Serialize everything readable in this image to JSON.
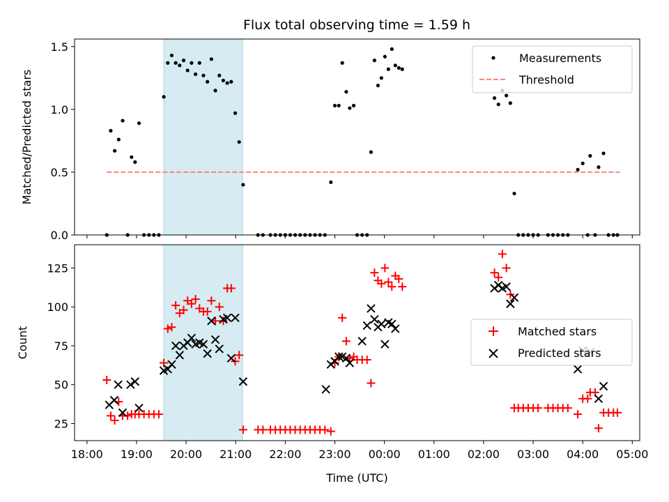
{
  "chart_data": [
    {
      "type": "scatter",
      "title": "Flux total observing time = 1.59 h",
      "xlabel": "",
      "ylabel": "Matched/Predicted stars",
      "xlim": [
        -0.25,
        11.15
      ],
      "ylim": [
        0,
        1.56
      ],
      "yticks": [
        0.0,
        0.5,
        1.0,
        1.5
      ],
      "ytick_labels": [
        "0.0",
        "0.5",
        "1.0",
        "1.5"
      ],
      "highlight_span": [
        1.55,
        3.14
      ],
      "legend": {
        "position": "top-right",
        "entries": [
          "Measurements",
          "Threshold"
        ]
      },
      "threshold": {
        "name": "Threshold",
        "value": 0.5,
        "x": [
          0.4,
          10.75
        ],
        "color": "#ff8080"
      },
      "series": [
        {
          "name": "Measurements",
          "color": "#000000",
          "marker": "dot",
          "points": [
            [
              0.4,
              0.0
            ],
            [
              0.48,
              0.83
            ],
            [
              0.56,
              0.67
            ],
            [
              0.64,
              0.76
            ],
            [
              0.72,
              0.91
            ],
            [
              0.82,
              0.0
            ],
            [
              0.9,
              0.62
            ],
            [
              0.97,
              0.58
            ],
            [
              1.05,
              0.89
            ],
            [
              1.15,
              0.0
            ],
            [
              1.25,
              0.0
            ],
            [
              1.35,
              0.0
            ],
            [
              1.45,
              0.0
            ],
            [
              1.55,
              1.1
            ],
            [
              1.63,
              1.37
            ],
            [
              1.71,
              1.43
            ],
            [
              1.79,
              1.37
            ],
            [
              1.87,
              1.35
            ],
            [
              1.95,
              1.39
            ],
            [
              2.03,
              1.31
            ],
            [
              2.11,
              1.37
            ],
            [
              2.19,
              1.28
            ],
            [
              2.27,
              1.37
            ],
            [
              2.35,
              1.27
            ],
            [
              2.43,
              1.22
            ],
            [
              2.51,
              1.4
            ],
            [
              2.59,
              1.15
            ],
            [
              2.67,
              1.27
            ],
            [
              2.75,
              1.23
            ],
            [
              2.83,
              1.21
            ],
            [
              2.91,
              1.22
            ],
            [
              2.99,
              0.97
            ],
            [
              3.07,
              0.74
            ],
            [
              3.15,
              0.4
            ],
            [
              3.45,
              0.0
            ],
            [
              3.55,
              0.0
            ],
            [
              3.7,
              0.0
            ],
            [
              3.8,
              0.0
            ],
            [
              3.9,
              0.0
            ],
            [
              4.0,
              0.0
            ],
            [
              4.1,
              0.0
            ],
            [
              4.2,
              0.0
            ],
            [
              4.3,
              0.0
            ],
            [
              4.4,
              0.0
            ],
            [
              4.5,
              0.0
            ],
            [
              4.6,
              0.0
            ],
            [
              4.7,
              0.0
            ],
            [
              4.8,
              0.0
            ],
            [
              4.92,
              0.42
            ],
            [
              5.0,
              1.03
            ],
            [
              5.08,
              1.03
            ],
            [
              5.15,
              1.37
            ],
            [
              5.23,
              1.14
            ],
            [
              5.3,
              1.01
            ],
            [
              5.38,
              1.03
            ],
            [
              5.45,
              0.0
            ],
            [
              5.55,
              0.0
            ],
            [
              5.65,
              0.0
            ],
            [
              5.73,
              0.66
            ],
            [
              5.8,
              1.39
            ],
            [
              5.87,
              1.19
            ],
            [
              5.94,
              1.25
            ],
            [
              6.01,
              1.42
            ],
            [
              6.08,
              1.32
            ],
            [
              6.15,
              1.48
            ],
            [
              6.22,
              1.35
            ],
            [
              6.29,
              1.33
            ],
            [
              6.36,
              1.32
            ],
            [
              8.22,
              1.09
            ],
            [
              8.3,
              1.04
            ],
            [
              8.38,
              1.15
            ],
            [
              8.46,
              1.11
            ],
            [
              8.54,
              1.05
            ],
            [
              8.62,
              0.33
            ],
            [
              8.7,
              0.0
            ],
            [
              8.8,
              0.0
            ],
            [
              8.9,
              0.0
            ],
            [
              9.0,
              0.0
            ],
            [
              9.1,
              0.0
            ],
            [
              9.3,
              0.0
            ],
            [
              9.4,
              0.0
            ],
            [
              9.5,
              0.0
            ],
            [
              9.6,
              0.0
            ],
            [
              9.7,
              0.0
            ],
            [
              9.9,
              0.52
            ],
            [
              10.0,
              0.57
            ],
            [
              10.1,
              0.0
            ],
            [
              10.15,
              0.63
            ],
            [
              10.25,
              0.0
            ],
            [
              10.32,
              0.54
            ],
            [
              10.42,
              0.65
            ],
            [
              10.52,
              0.0
            ],
            [
              10.62,
              0.0
            ],
            [
              10.7,
              0.0
            ]
          ]
        }
      ]
    },
    {
      "type": "scatter",
      "title": "",
      "xlabel": "Time (UTC)",
      "ylabel": "Count",
      "xlim": [
        -0.25,
        11.15
      ],
      "ylim": [
        14,
        140
      ],
      "yticks": [
        25,
        50,
        75,
        100,
        125
      ],
      "ytick_labels": [
        "25",
        "50",
        "75",
        "100",
        "125"
      ],
      "xticks": [
        0,
        1,
        2,
        3,
        4,
        5,
        6,
        7,
        8,
        9,
        10,
        11
      ],
      "xtick_labels": [
        "18:00",
        "19:00",
        "20:00",
        "21:00",
        "22:00",
        "23:00",
        "00:00",
        "01:00",
        "02:00",
        "03:00",
        "04:00",
        "05:00"
      ],
      "highlight_span": [
        1.55,
        3.14
      ],
      "legend": {
        "position": "center-right",
        "entries": [
          "Matched stars",
          "Predicted stars"
        ]
      },
      "series": [
        {
          "name": "Matched stars",
          "color": "#ff0000",
          "marker": "plus",
          "points": [
            [
              0.4,
              53
            ],
            [
              0.48,
              30
            ],
            [
              0.56,
              27
            ],
            [
              0.64,
              39
            ],
            [
              0.72,
              30
            ],
            [
              0.82,
              30
            ],
            [
              0.9,
              31
            ],
            [
              0.97,
              31
            ],
            [
              1.05,
              31
            ],
            [
              1.15,
              31
            ],
            [
              1.25,
              31
            ],
            [
              1.35,
              31
            ],
            [
              1.45,
              31
            ],
            [
              1.55,
              64
            ],
            [
              1.63,
              86
            ],
            [
              1.71,
              87
            ],
            [
              1.79,
              101
            ],
            [
              1.87,
              96
            ],
            [
              1.95,
              98
            ],
            [
              2.03,
              104
            ],
            [
              2.11,
              102
            ],
            [
              2.19,
              105
            ],
            [
              2.27,
              99
            ],
            [
              2.35,
              97
            ],
            [
              2.43,
              97
            ],
            [
              2.51,
              104
            ],
            [
              2.59,
              91
            ],
            [
              2.67,
              100
            ],
            [
              2.75,
              91
            ],
            [
              2.83,
              112
            ],
            [
              2.91,
              112
            ],
            [
              2.99,
              65
            ],
            [
              3.07,
              69
            ],
            [
              3.15,
              21
            ],
            [
              3.45,
              21
            ],
            [
              3.55,
              21
            ],
            [
              3.7,
              21
            ],
            [
              3.8,
              21
            ],
            [
              3.9,
              21
            ],
            [
              4.0,
              21
            ],
            [
              4.1,
              21
            ],
            [
              4.2,
              21
            ],
            [
              4.3,
              21
            ],
            [
              4.4,
              21
            ],
            [
              4.5,
              21
            ],
            [
              4.6,
              21
            ],
            [
              4.7,
              21
            ],
            [
              4.8,
              21
            ],
            [
              4.92,
              20
            ],
            [
              5.0,
              64
            ],
            [
              5.08,
              68
            ],
            [
              5.15,
              93
            ],
            [
              5.23,
              78
            ],
            [
              5.3,
              67
            ],
            [
              5.38,
              68
            ],
            [
              5.45,
              66
            ],
            [
              5.55,
              66
            ],
            [
              5.65,
              66
            ],
            [
              5.73,
              51
            ],
            [
              5.8,
              122
            ],
            [
              5.87,
              117
            ],
            [
              5.94,
              115
            ],
            [
              6.01,
              125
            ],
            [
              6.08,
              116
            ],
            [
              6.15,
              113
            ],
            [
              6.22,
              120
            ],
            [
              6.29,
              118
            ],
            [
              6.36,
              113
            ],
            [
              8.22,
              122
            ],
            [
              8.3,
              119
            ],
            [
              8.38,
              134
            ],
            [
              8.46,
              125
            ],
            [
              8.54,
              108
            ],
            [
              8.62,
              35
            ],
            [
              8.7,
              35
            ],
            [
              8.8,
              35
            ],
            [
              8.9,
              35
            ],
            [
              9.0,
              35
            ],
            [
              9.1,
              35
            ],
            [
              9.3,
              35
            ],
            [
              9.4,
              35
            ],
            [
              9.5,
              35
            ],
            [
              9.6,
              35
            ],
            [
              9.7,
              35
            ],
            [
              9.9,
              31
            ],
            [
              10.0,
              41
            ],
            [
              10.1,
              41
            ],
            [
              10.15,
              45
            ],
            [
              10.25,
              45
            ],
            [
              10.32,
              22
            ],
            [
              10.42,
              32
            ],
            [
              10.52,
              32
            ],
            [
              10.62,
              32
            ],
            [
              10.7,
              32
            ]
          ]
        },
        {
          "name": "Predicted stars",
          "color": "#000000",
          "marker": "x",
          "points": [
            [
              0.45,
              37
            ],
            [
              0.55,
              40
            ],
            [
              0.63,
              50
            ],
            [
              0.72,
              32
            ],
            [
              0.88,
              50
            ],
            [
              0.97,
              52
            ],
            [
              1.05,
              35
            ],
            [
              1.55,
              59
            ],
            [
              1.63,
              60
            ],
            [
              1.71,
              63
            ],
            [
              1.79,
              75
            ],
            [
              1.87,
              69
            ],
            [
              1.95,
              75
            ],
            [
              2.03,
              77
            ],
            [
              2.11,
              80
            ],
            [
              2.19,
              76
            ],
            [
              2.27,
              77
            ],
            [
              2.35,
              76
            ],
            [
              2.43,
              70
            ],
            [
              2.51,
              91
            ],
            [
              2.59,
              79
            ],
            [
              2.67,
              73
            ],
            [
              2.75,
              92
            ],
            [
              2.83,
              93
            ],
            [
              2.91,
              67
            ],
            [
              2.99,
              93
            ],
            [
              3.15,
              52
            ],
            [
              4.82,
              47
            ],
            [
              4.92,
              63
            ],
            [
              5.0,
              65
            ],
            [
              5.08,
              68
            ],
            [
              5.15,
              68
            ],
            [
              5.23,
              67
            ],
            [
              5.3,
              64
            ],
            [
              5.55,
              78
            ],
            [
              5.65,
              88
            ],
            [
              5.73,
              99
            ],
            [
              5.8,
              92
            ],
            [
              5.87,
              87
            ],
            [
              5.94,
              89
            ],
            [
              6.01,
              76
            ],
            [
              6.08,
              90
            ],
            [
              6.15,
              89
            ],
            [
              6.22,
              86
            ],
            [
              8.22,
              112
            ],
            [
              8.3,
              114
            ],
            [
              8.38,
              112
            ],
            [
              8.46,
              113
            ],
            [
              8.54,
              102
            ],
            [
              8.62,
              106
            ],
            [
              9.9,
              60
            ],
            [
              10.0,
              72
            ],
            [
              10.15,
              71
            ],
            [
              10.32,
              41
            ],
            [
              10.42,
              49
            ]
          ]
        }
      ]
    }
  ]
}
